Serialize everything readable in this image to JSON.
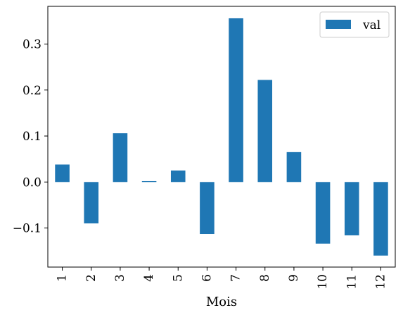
{
  "chart_data": {
    "type": "bar",
    "categories": [
      "1",
      "2",
      "3",
      "4",
      "5",
      "6",
      "7",
      "8",
      "9",
      "10",
      "11",
      "12"
    ],
    "series": [
      {
        "name": "val",
        "color": "#1f77b4",
        "values": [
          0.038,
          -0.09,
          0.106,
          0.002,
          0.025,
          -0.113,
          0.356,
          0.222,
          0.065,
          -0.134,
          -0.116,
          -0.16
        ]
      }
    ],
    "xlabel": "Mois",
    "ylabel": "",
    "ylim": [
      -0.185,
      0.382
    ],
    "yticks": [
      -0.1,
      0.0,
      0.1,
      0.2,
      0.3
    ],
    "ytick_labels": [
      "−0.1",
      "0.0",
      "0.1",
      "0.2",
      "0.3"
    ],
    "grid": false,
    "legend": {
      "position": "top-right"
    }
  }
}
